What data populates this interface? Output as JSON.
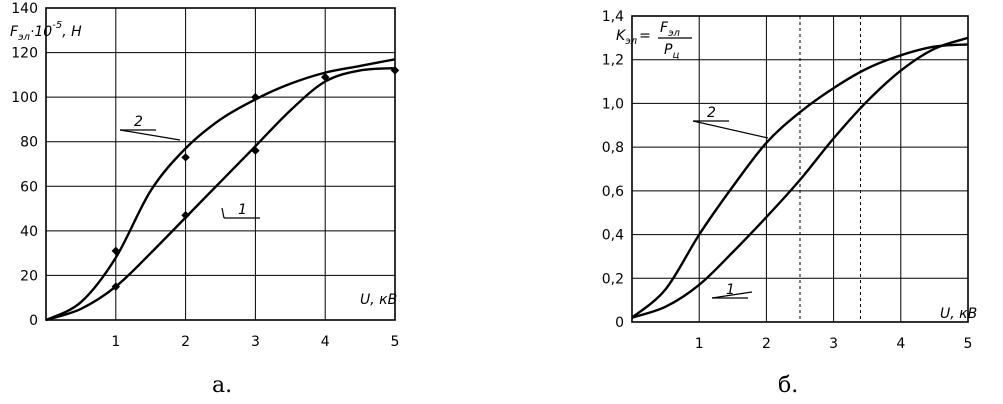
{
  "chart_data": [
    {
      "type": "line",
      "title": "",
      "ylabel": "F_эл·10^-5, Н",
      "ylabel_main": "F",
      "ylabel_sub": "эл",
      "ylabel_rest": "·10",
      "ylabel_exp": "-5",
      "ylabel_unit": ", Н",
      "xlabel": "U, кВ",
      "xlim": [
        0,
        5
      ],
      "ylim": [
        0,
        140
      ],
      "xticks": [
        "1",
        "2",
        "3",
        "4",
        "5"
      ],
      "yticks": [
        "0",
        "20",
        "40",
        "60",
        "80",
        "100",
        "120",
        "140"
      ],
      "sublabel": "а.",
      "grid": true,
      "series": [
        {
          "name": "1",
          "x": [
            0,
            0.5,
            1.0,
            1.5,
            2.0,
            2.5,
            3.0,
            3.5,
            4.0,
            4.5,
            5.0
          ],
          "y": [
            0,
            5,
            15,
            30,
            46,
            62,
            78,
            94,
            107,
            112,
            113
          ],
          "points_x": [
            1,
            2,
            3,
            4,
            5
          ],
          "points_y": [
            15,
            47,
            76,
            109,
            112
          ]
        },
        {
          "name": "2",
          "x": [
            0,
            0.5,
            1.0,
            1.5,
            2.0,
            2.5,
            3.0,
            3.5,
            4.0,
            4.5,
            5.0
          ],
          "y": [
            0,
            8,
            28,
            58,
            77,
            90,
            99,
            106,
            111,
            114,
            117
          ],
          "points_x": [
            1,
            2,
            3
          ],
          "points_y": [
            31,
            73,
            100
          ]
        }
      ]
    },
    {
      "type": "line",
      "title": "",
      "ylabel": "K_эл = F_эл / P_ц",
      "ylabel_k": "K",
      "ylabel_k_sub": "эл",
      "ylabel_eq": "=",
      "ylabel_num": "F",
      "ylabel_num_sub": "эл",
      "ylabel_den": "P",
      "ylabel_den_sub": "ц",
      "xlabel": "U, кВ",
      "xlim": [
        0,
        5
      ],
      "ylim": [
        0,
        1.4
      ],
      "xticks": [
        "1",
        "2",
        "3",
        "4",
        "5"
      ],
      "yticks": [
        "0",
        "0,2",
        "0,4",
        "0,6",
        "0,8",
        "1,0",
        "1,2",
        "1,4"
      ],
      "sublabel": "б.",
      "grid": true,
      "dashed_x": [
        2.5,
        3.4
      ],
      "series": [
        {
          "name": "1",
          "x": [
            0,
            0.5,
            1.0,
            1.5,
            2.0,
            2.5,
            3.0,
            3.5,
            4.0,
            4.5,
            5.0
          ],
          "y": [
            0.02,
            0.07,
            0.17,
            0.32,
            0.48,
            0.65,
            0.84,
            1.01,
            1.15,
            1.25,
            1.3
          ],
          "points_x": [],
          "points_y": []
        },
        {
          "name": "2",
          "x": [
            0,
            0.5,
            1.0,
            1.5,
            2.0,
            2.5,
            3.0,
            3.5,
            4.0,
            4.5,
            5.0
          ],
          "y": [
            0.02,
            0.15,
            0.4,
            0.62,
            0.82,
            0.96,
            1.07,
            1.16,
            1.22,
            1.26,
            1.27
          ],
          "points_x": [],
          "points_y": []
        }
      ]
    }
  ]
}
